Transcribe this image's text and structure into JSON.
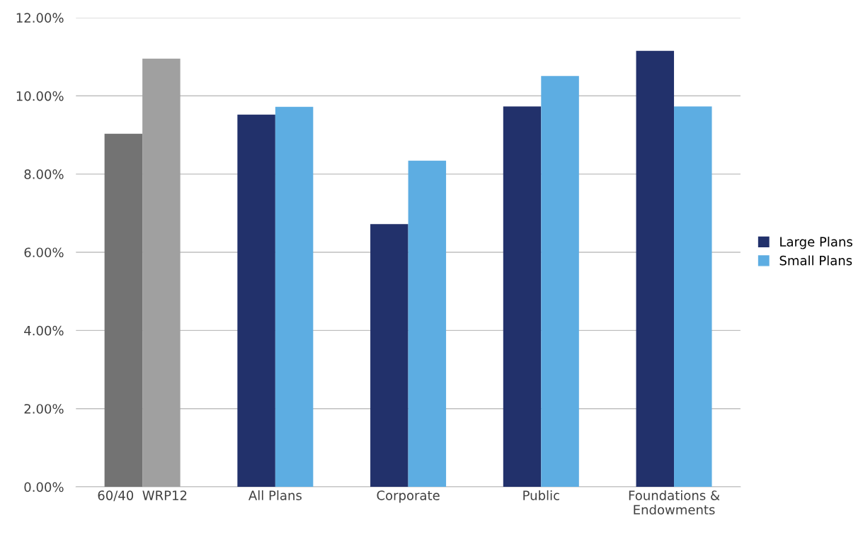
{
  "chart_data": {
    "type": "bar",
    "categories": [
      "60/40  WRP12",
      "All Plans",
      "Corporate",
      "Public",
      "Foundations &\nEndowments"
    ],
    "series": [
      {
        "name": "Large Plans",
        "color": "#22316b",
        "colors": [
          "#737373",
          "#22316b",
          "#22316b",
          "#22316b",
          "#22316b"
        ],
        "values": [
          9.03,
          9.52,
          6.72,
          9.73,
          11.15
        ]
      },
      {
        "name": "Small Plans",
        "color": "#5dade2",
        "colors": [
          "#a0a0a0",
          "#5dade2",
          "#5dade2",
          "#5dade2",
          "#5dade2"
        ],
        "values": [
          10.95,
          9.72,
          8.34,
          10.51,
          9.73
        ]
      }
    ],
    "ylim": [
      0,
      12
    ],
    "yticks": [
      {
        "value": 0,
        "label": "0.00%"
      },
      {
        "value": 2,
        "label": "2.00%"
      },
      {
        "value": 4,
        "label": "4.00%"
      },
      {
        "value": 6,
        "label": "6.00%"
      },
      {
        "value": 8,
        "label": "8.00%"
      },
      {
        "value": 10,
        "label": "10.00%"
      },
      {
        "value": 12,
        "label": "12.00%"
      }
    ],
    "grid": "y",
    "legend": "right"
  }
}
